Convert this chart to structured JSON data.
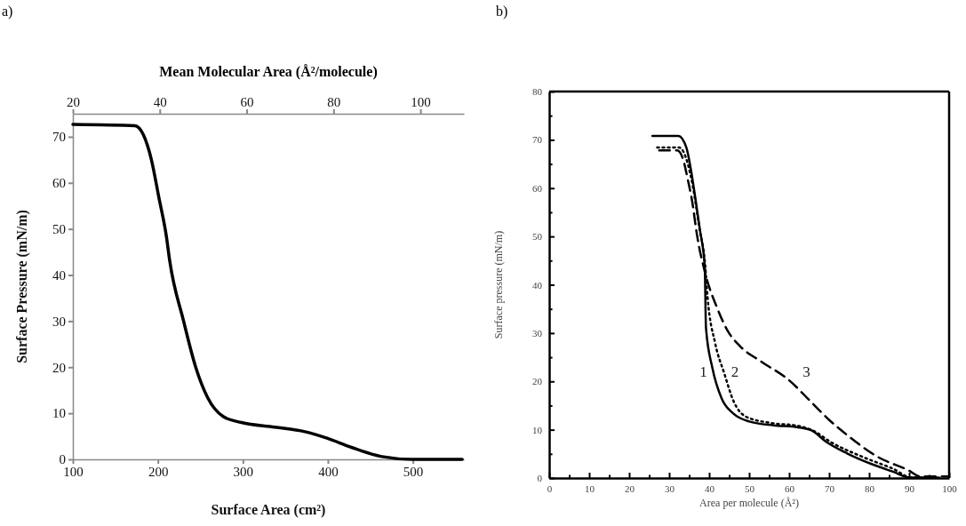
{
  "chart_data": [
    {
      "type": "line",
      "title": "a)",
      "xlabel": "Surface Area (cm²)",
      "ylabel": "Surface Pressure (mN/m)",
      "x2label": "Mean Molecular Area (Å²/molecule)",
      "xlim": [
        100,
        560
      ],
      "xticks": [
        100,
        200,
        300,
        400,
        500
      ],
      "x2lim": [
        20,
        110
      ],
      "x2ticks": [
        20,
        40,
        60,
        80,
        100
      ],
      "ylim": [
        0,
        75
      ],
      "yticks": [
        0,
        10,
        20,
        30,
        40,
        50,
        60,
        70
      ],
      "grid": false,
      "marker": "none",
      "series": [
        {
          "color": "#000000",
          "line_style": "solid",
          "x": [
            100,
            173,
            183,
            192.4,
            201,
            210,
            214,
            230,
            244.5,
            258.8,
            276.8,
            298.3,
            337.5,
            373,
            399,
            427.7,
            463.5,
            499.5,
            558
          ],
          "values": [
            72.7,
            72.4,
            70.4,
            65,
            57,
            48.4,
            43,
            30.2,
            20,
            13.3,
            9.3,
            8,
            7,
            6,
            4.6,
            2.6,
            0.6,
            0,
            0
          ]
        }
      ]
    },
    {
      "type": "line",
      "title": "b)",
      "xlabel": "Area per molecule (Å²)",
      "ylabel": "Surface pressure (mN/m)",
      "xlim": [
        0,
        100
      ],
      "xticks": [
        0,
        {
          "value": 5,
          "label": null
        },
        10,
        {
          "value": 15,
          "label": null
        },
        20,
        {
          "value": 25,
          "label": null
        },
        30,
        {
          "value": 35,
          "label": null
        },
        40,
        {
          "value": 45,
          "label": null
        },
        50,
        {
          "value": 55,
          "label": null
        },
        60,
        {
          "value": 65,
          "label": null
        },
        70,
        {
          "value": 75,
          "label": null
        },
        80,
        {
          "value": 85,
          "label": null
        },
        90,
        {
          "value": 95,
          "label": null
        },
        100
      ],
      "ylim": [
        0,
        80
      ],
      "yticks": [
        0,
        {
          "value": 5,
          "label": null
        },
        10,
        {
          "value": 15,
          "label": null
        },
        20,
        {
          "value": 25,
          "label": null
        },
        30,
        {
          "value": 35,
          "label": null
        },
        40,
        {
          "value": 45,
          "label": null
        },
        50,
        {
          "value": 55,
          "label": null
        },
        60,
        {
          "value": 65,
          "label": null
        },
        70,
        {
          "value": 75,
          "label": null
        },
        80
      ],
      "grid": false,
      "marker": "none",
      "series": [
        {
          "name": "1",
          "color": "#000000",
          "line_style": "solid",
          "x": [
            25.8,
            32.3,
            34.3,
            35.4,
            36.6,
            37.7,
            38.9,
            39.2,
            40.8,
            43.1,
            46.1,
            50,
            56.1,
            62.2,
            65.7,
            69.1,
            74.5,
            80.6,
            86,
            90.2,
            97.5
          ],
          "values": [
            70.8,
            70.8,
            68.4,
            64,
            57.6,
            51.3,
            43.7,
            31.1,
            22.8,
            16.5,
            13.3,
            11.7,
            10.9,
            10.5,
            9.8,
            7.6,
            5.1,
            2.9,
            1.3,
            0.1,
            0.1
          ]
        },
        {
          "name": "2",
          "color": "#000000",
          "line_style": "dotted",
          "x": [
            27,
            32.5,
            34.6,
            36,
            37.5,
            39,
            39.6,
            41.5,
            43.8,
            46.1,
            49.2,
            55.3,
            62.2,
            66,
            70.7,
            78.3,
            86,
            90.6,
            96
          ],
          "values": [
            68.4,
            68.4,
            65.2,
            60,
            52,
            44,
            37.4,
            27.9,
            21.6,
            15.9,
            12.7,
            11.4,
            10.8,
            9.8,
            7.3,
            4.4,
            1.9,
            0.1,
            0.3
          ]
        },
        {
          "name": "3",
          "color": "#000000",
          "line_style": "dashed",
          "x": [
            27.5,
            32,
            33.5,
            34.6,
            35.8,
            36.9,
            39.2,
            41.9,
            44.6,
            47.7,
            53,
            59.9,
            65.3,
            69.9,
            74.5,
            82.1,
            89.8,
            92.9,
            99.8
          ],
          "values": [
            67.8,
            67.8,
            65.9,
            62,
            57,
            50.6,
            41.8,
            35.4,
            30.5,
            27.3,
            24.1,
            20.3,
            15.9,
            12.1,
            8.9,
            4.4,
            1.6,
            0.3,
            0.3
          ]
        }
      ]
    }
  ]
}
